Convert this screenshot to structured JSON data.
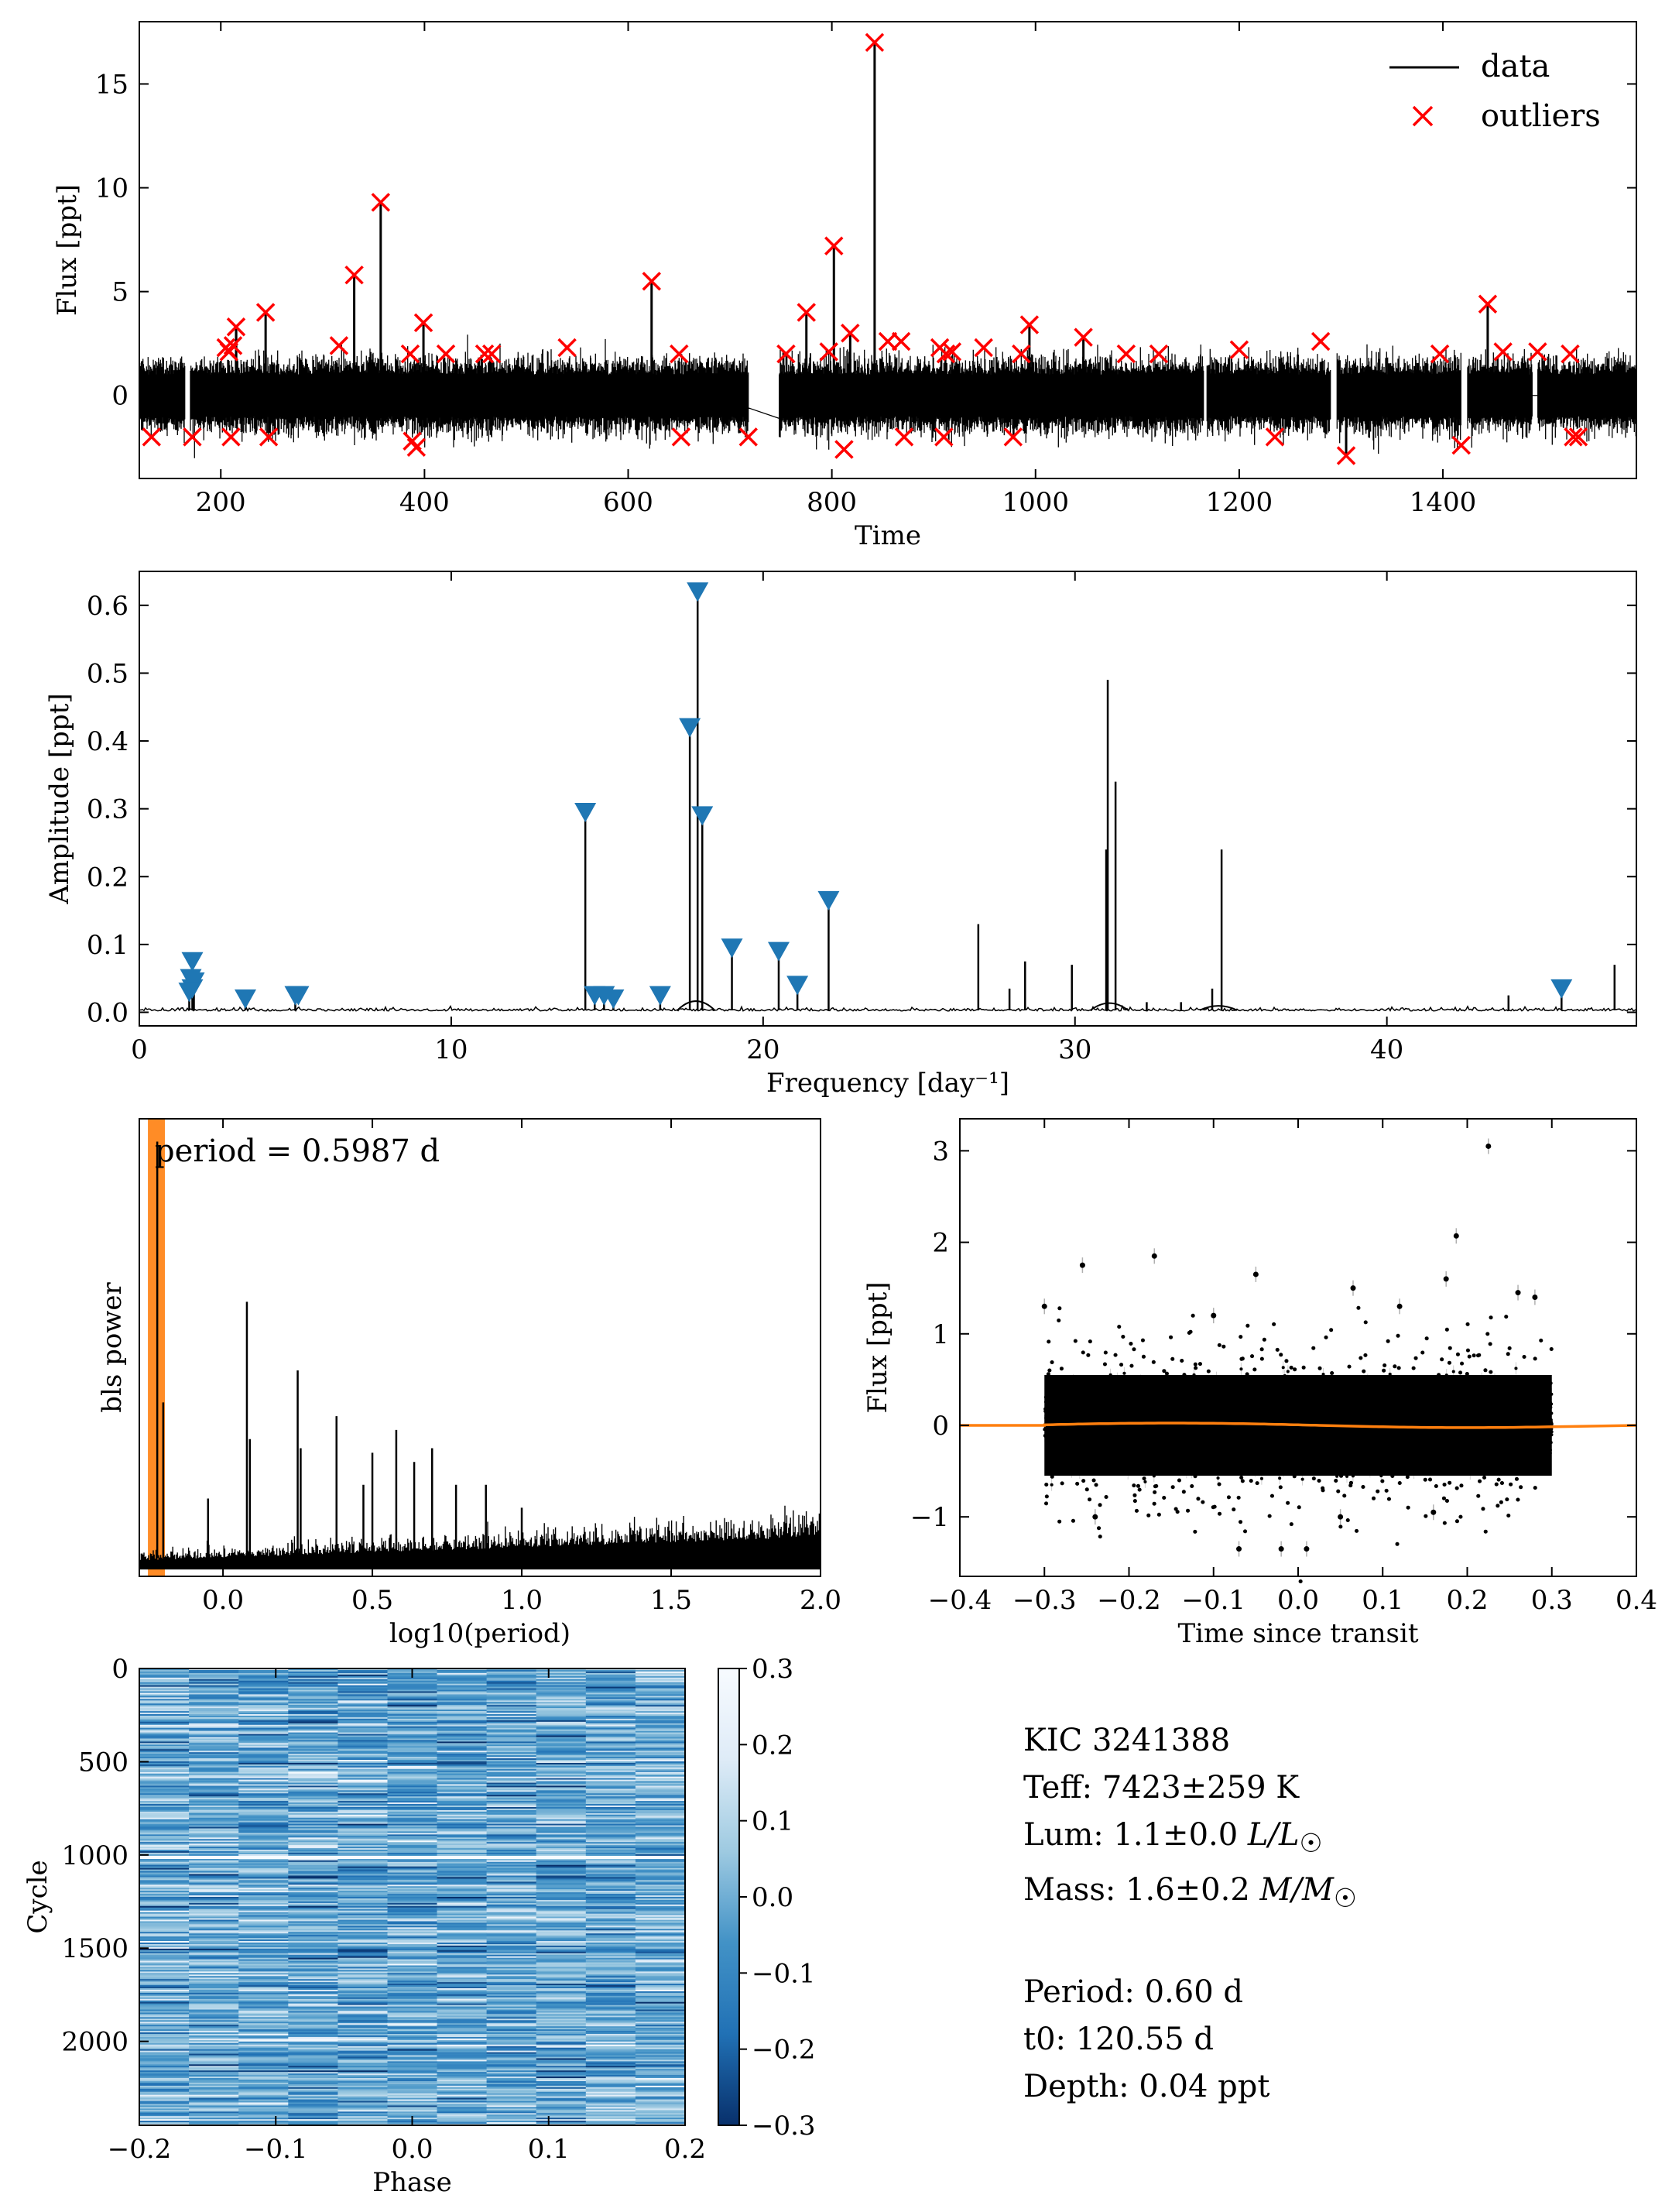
{
  "chart_data": [
    {
      "type": "line",
      "panel": "light-curve",
      "xlabel": "Time",
      "ylabel": "Flux [ppt]",
      "xlim": [
        120,
        1590
      ],
      "ylim": [
        -4,
        18
      ],
      "xticks": [
        200,
        400,
        600,
        800,
        1000,
        1200,
        1400
      ],
      "yticks": [
        0,
        5,
        10,
        15
      ],
      "legend": {
        "position": "top-right",
        "entries": [
          "data",
          "outliers"
        ]
      },
      "series": [
        {
          "name": "data",
          "kind": "line",
          "color": "#000000"
        },
        {
          "name": "outliers",
          "kind": "marker-x",
          "color": "#ff0000",
          "points": [
            [
              132,
              -2.0
            ],
            [
              172,
              -2.0
            ],
            [
              205,
              2.3
            ],
            [
              208,
              2.1
            ],
            [
              212,
              2.4
            ],
            [
              215,
              3.3
            ],
            [
              210,
              -2.0
            ],
            [
              244,
              4.0
            ],
            [
              247,
              -2.0
            ],
            [
              316,
              2.4
            ],
            [
              331,
              5.8
            ],
            [
              357,
              9.3
            ],
            [
              386,
              2.0
            ],
            [
              388,
              -2.2
            ],
            [
              392,
              -2.5
            ],
            [
              399,
              3.5
            ],
            [
              421,
              2.0
            ],
            [
              459,
              2.0
            ],
            [
              466,
              2.0
            ],
            [
              540,
              2.3
            ],
            [
              623,
              5.5
            ],
            [
              650,
              2.0
            ],
            [
              652,
              -2.0
            ],
            [
              718,
              -2.0
            ],
            [
              755,
              2.0
            ],
            [
              775,
              4.0
            ],
            [
              797,
              2.1
            ],
            [
              802,
              7.2
            ],
            [
              812,
              -2.6
            ],
            [
              818,
              3.0
            ],
            [
              842,
              17.0
            ],
            [
              855,
              2.6
            ],
            [
              868,
              2.6
            ],
            [
              871,
              -2.0
            ],
            [
              906,
              2.3
            ],
            [
              910,
              -2.0
            ],
            [
              912,
              2.0
            ],
            [
              918,
              2.1
            ],
            [
              949,
              2.3
            ],
            [
              978,
              -2.0
            ],
            [
              986,
              2.0
            ],
            [
              994,
              3.4
            ],
            [
              1047,
              2.8
            ],
            [
              1089,
              2.0
            ],
            [
              1121,
              2.0
            ],
            [
              1200,
              2.2
            ],
            [
              1235,
              -2.0
            ],
            [
              1280,
              2.6
            ],
            [
              1305,
              -2.9
            ],
            [
              1397,
              2.0
            ],
            [
              1418,
              -2.4
            ],
            [
              1444,
              4.4
            ],
            [
              1459,
              2.1
            ],
            [
              1493,
              2.1
            ],
            [
              1525,
              2.0
            ],
            [
              1528,
              -2.0
            ],
            [
              1533,
              -2.0
            ]
          ]
        }
      ]
    },
    {
      "type": "line",
      "panel": "amplitude-spectrum",
      "xlabel": "Frequency [day⁻¹]",
      "ylabel": "Amplitude [ppt]",
      "xlim": [
        0,
        48
      ],
      "ylim": [
        -0.02,
        0.65
      ],
      "xticks": [
        0,
        10,
        20,
        30,
        40
      ],
      "yticks": [
        0.0,
        0.1,
        0.2,
        0.3,
        0.4,
        0.5,
        0.6
      ],
      "peaks": [
        [
          14.3,
          0.3
        ],
        [
          17.65,
          0.42
        ],
        [
          17.9,
          0.62
        ],
        [
          18.05,
          0.29
        ],
        [
          19.0,
          0.1
        ],
        [
          20.5,
          0.09
        ],
        [
          21.1,
          0.04
        ],
        [
          22.1,
          0.165
        ],
        [
          26.9,
          0.13
        ],
        [
          27.9,
          0.035
        ],
        [
          28.4,
          0.075
        ],
        [
          29.9,
          0.07
        ],
        [
          31.05,
          0.49
        ],
        [
          31.0,
          0.24
        ],
        [
          31.3,
          0.34
        ],
        [
          32.3,
          0.015
        ],
        [
          33.4,
          0.015
        ],
        [
          34.4,
          0.035
        ],
        [
          34.7,
          0.24
        ],
        [
          43.9,
          0.025
        ],
        [
          45.6,
          0.035
        ],
        [
          47.3,
          0.07
        ]
      ],
      "markers": {
        "color": "#1f77b4",
        "points": [
          [
            1.7,
            0.075
          ],
          [
            1.65,
            0.05
          ],
          [
            1.75,
            0.045
          ],
          [
            1.7,
            0.035
          ],
          [
            1.6,
            0.03
          ],
          [
            3.4,
            0.02
          ],
          [
            5.0,
            0.025
          ],
          [
            5.1,
            0.025
          ],
          [
            14.3,
            0.295
          ],
          [
            14.6,
            0.025
          ],
          [
            14.9,
            0.025
          ],
          [
            15.2,
            0.02
          ],
          [
            16.7,
            0.025
          ],
          [
            17.65,
            0.42
          ],
          [
            17.9,
            0.62
          ],
          [
            18.05,
            0.29
          ],
          [
            19.0,
            0.095
          ],
          [
            20.5,
            0.09
          ],
          [
            21.1,
            0.04
          ],
          [
            22.1,
            0.165
          ],
          [
            45.6,
            0.035
          ]
        ]
      }
    },
    {
      "type": "line",
      "panel": "bls-periodogram",
      "xlabel": "log10(period)",
      "ylabel": "bls power",
      "xlim": [
        -0.28,
        2.0
      ],
      "xticks": [
        0.0,
        0.5,
        1.0,
        1.5,
        2.0
      ],
      "annotation": "period = 0.5987 d",
      "highlight": {
        "x": -0.2228,
        "color": "#ff7f0e"
      },
      "spikes": [
        [
          -0.22,
          0.95
        ],
        [
          -0.2,
          0.38
        ],
        [
          -0.05,
          0.17
        ],
        [
          0.08,
          0.6
        ],
        [
          0.09,
          0.3
        ],
        [
          0.25,
          0.45
        ],
        [
          0.26,
          0.28
        ],
        [
          0.38,
          0.35
        ],
        [
          0.47,
          0.2
        ],
        [
          0.5,
          0.27
        ],
        [
          0.58,
          0.32
        ],
        [
          0.64,
          0.25
        ],
        [
          0.7,
          0.28
        ],
        [
          0.78,
          0.2
        ],
        [
          0.88,
          0.2
        ],
        [
          1.0,
          0.15
        ]
      ]
    },
    {
      "type": "scatter",
      "panel": "folded-transit",
      "xlabel": "Time since transit",
      "ylabel": "Flux [ppt]",
      "xlim": [
        -0.4,
        0.4
      ],
      "ylim": [
        -1.65,
        3.35
      ],
      "xticks": [
        -0.4,
        -0.3,
        -0.2,
        -0.1,
        0.0,
        0.1,
        0.2,
        0.3,
        0.4
      ],
      "yticks": [
        -1,
        0,
        1,
        2,
        3
      ],
      "model_color": "#ff7f0e",
      "outlier_points": [
        [
          0.225,
          3.05
        ],
        [
          0.187,
          2.07
        ],
        [
          -0.255,
          1.75
        ],
        [
          -0.17,
          1.85
        ],
        [
          -0.05,
          1.65
        ],
        [
          0.065,
          1.5
        ],
        [
          0.175,
          1.6
        ],
        [
          0.26,
          1.45
        ],
        [
          -0.02,
          -1.35
        ],
        [
          0.01,
          -1.35
        ],
        [
          -0.07,
          -1.35
        ],
        [
          -0.3,
          1.3
        ],
        [
          -0.1,
          1.2
        ],
        [
          0.12,
          1.3
        ],
        [
          0.28,
          1.4
        ],
        [
          -0.24,
          -1.0
        ],
        [
          0.05,
          -1.0
        ],
        [
          0.16,
          -0.95
        ]
      ]
    },
    {
      "type": "heatmap",
      "panel": "river-diagram",
      "xlabel": "Phase",
      "ylabel": "Cycle",
      "xlim": [
        -0.2,
        0.2
      ],
      "ylim": [
        0,
        2450
      ],
      "xticks": [
        -0.2,
        -0.1,
        0.0,
        0.1,
        0.2
      ],
      "yticks": [
        0,
        500,
        1000,
        1500,
        2000
      ],
      "colorbar": {
        "range": [
          -0.3,
          0.3
        ],
        "ticks": [
          0.3,
          0.2,
          0.1,
          0.0,
          -0.1,
          -0.2,
          -0.3
        ],
        "colormap": "Blues_r"
      }
    }
  ],
  "info": {
    "target": "KIC 3241388",
    "teff_label": "Teff: 7423±259 K",
    "lum_label": "Lum: 1.1±0.0 ",
    "lum_unit": "L/L",
    "mass_label": "Mass: 1.6±0.2 ",
    "mass_unit": "M/M",
    "period_label": "Period: 0.60 d",
    "t0_label": "t0: 120.55 d",
    "depth_label": "Depth: 0.04 ppt"
  }
}
